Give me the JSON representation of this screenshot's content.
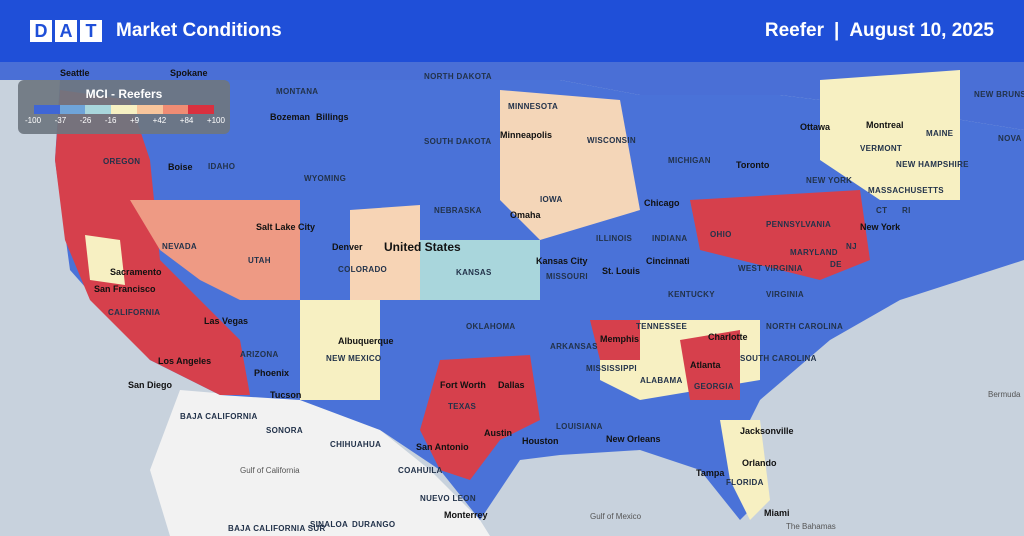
{
  "header": {
    "logo_letters": [
      "D",
      "A",
      "T"
    ],
    "title": "Market Conditions",
    "equipment": "Reefer",
    "separator": "|",
    "date": "August 10, 2025"
  },
  "legend": {
    "title": "MCI - Reefers",
    "colors": [
      "#3f66d6",
      "#6fa4d9",
      "#a9d6dc",
      "#f7f0c2",
      "#f7c59c",
      "#ef8c74",
      "#d9303f"
    ],
    "ticks": [
      "-100",
      "-37",
      "-26",
      "-16",
      "+9",
      "+42",
      "+84",
      "+100"
    ]
  },
  "map": {
    "country_label": "United States",
    "states": [
      "MONTANA",
      "NORTH DAKOTA",
      "MINNESOTA",
      "WISCONSIN",
      "MICHIGAN",
      "OREGON",
      "IDAHO",
      "WYOMING",
      "SOUTH DAKOTA",
      "IOWA",
      "NEBRASKA",
      "NEVADA",
      "UTAH",
      "COLORADO",
      "KANSAS",
      "MISSOURI",
      "ILLINOIS",
      "INDIANA",
      "OHIO",
      "PENNSYLVANIA",
      "NEW YORK",
      "VERMONT",
      "NEW HAMPSHIRE",
      "MAINE",
      "MASSACHUSETTS",
      "CT",
      "RI",
      "NJ",
      "DE",
      "MARYLAND",
      "WEST VIRGINIA",
      "VIRGINIA",
      "KENTUCKY",
      "TENNESSEE",
      "NORTH CAROLINA",
      "SOUTH CAROLINA",
      "GEORGIA",
      "ALABAMA",
      "MISSISSIPPI",
      "ARKANSAS",
      "LOUISIANA",
      "OKLAHOMA",
      "TEXAS",
      "NEW MEXICO",
      "ARIZONA",
      "CALIFORNIA",
      "FLORIDA",
      "NEW BRUNSWICK",
      "NOVA",
      "BAJA CALIFORNIA",
      "SONORA",
      "CHIHUAHUA",
      "COAHUILA",
      "NUEVO LEON",
      "SINALOA",
      "DURANGO",
      "BAJA CALIFORNIA SUR"
    ],
    "cities": [
      "Seattle",
      "Spokane",
      "Bozeman",
      "Billings",
      "Boise",
      "Salt Lake City",
      "Sacramento",
      "San Francisco",
      "Las Vegas",
      "Los Angeles",
      "San Diego",
      "Phoenix",
      "Tucson",
      "Denver",
      "Albuquerque",
      "Minneapolis",
      "Omaha",
      "Kansas City",
      "St. Louis",
      "Chicago",
      "Cincinnati",
      "Toronto",
      "Ottawa",
      "Montreal",
      "New York",
      "Charlotte",
      "Atlanta",
      "Memphis",
      "Fort Worth",
      "Dallas",
      "Austin",
      "Houston",
      "San Antonio",
      "New Orleans",
      "Jacksonville",
      "Orlando",
      "Tampa",
      "Miami",
      "Monterrey"
    ],
    "water": [
      "Gulf of Mexico",
      "Gulf of California",
      "Bermuda",
      "The Bahamas"
    ]
  }
}
